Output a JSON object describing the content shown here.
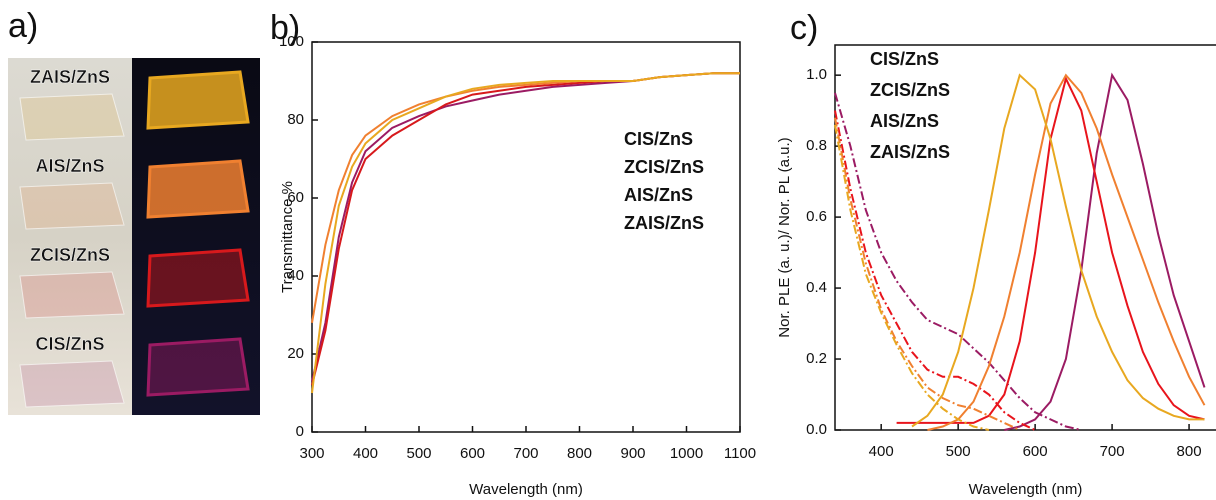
{
  "photo_panel": {
    "panel_label": "a)",
    "samples": [
      {
        "name": "ZAIS/ZnS",
        "color": "#e8a820"
      },
      {
        "name": "AIS/ZnS",
        "color": "#f08030"
      },
      {
        "name": "ZCIS/ZnS",
        "color": "#d7191c"
      },
      {
        "name": "CIS/ZnS",
        "color": "#9b1b63"
      }
    ]
  },
  "chart_data": [
    {
      "type": "line",
      "panel_label": "b)",
      "x_label": "Wavelength (nm)",
      "y_label": "Transmittance %",
      "xlim": [
        300,
        1100
      ],
      "xticks": [
        300,
        400,
        500,
        600,
        700,
        800,
        900,
        1000,
        1100
      ],
      "ylim": [
        0,
        100
      ],
      "yticks": [
        0,
        20,
        40,
        60,
        80,
        100
      ],
      "grid": false,
      "legend": "center right",
      "x": [
        300,
        325,
        350,
        375,
        400,
        450,
        500,
        550,
        600,
        650,
        700,
        750,
        800,
        850,
        900,
        950,
        1000,
        1050,
        1100
      ],
      "series": [
        {
          "name": "CIS/ZnS",
          "color": "#9b1b63",
          "values": [
            13,
            28,
            50,
            64,
            72,
            78,
            81,
            83.5,
            85,
            86.5,
            87.5,
            88.5,
            89,
            89.5,
            90,
            91,
            91.5,
            92,
            92
          ]
        },
        {
          "name": "ZCIS/ZnS",
          "color": "#d7191c",
          "values": [
            12,
            26,
            47,
            62,
            70,
            76,
            80,
            84,
            86.5,
            87.5,
            88.5,
            89,
            89.5,
            90,
            90,
            91,
            91.5,
            92,
            92
          ]
        },
        {
          "name": "AIS/ZnS",
          "color": "#f08030",
          "values": [
            28,
            48,
            62,
            71,
            76,
            81,
            84,
            86,
            87.5,
            88.5,
            89,
            89.5,
            90,
            90,
            90,
            91,
            91.5,
            92,
            92
          ]
        },
        {
          "name": "ZAIS/ZnS",
          "color": "#e8a820",
          "values": [
            10,
            38,
            58,
            68,
            74,
            80,
            83,
            86,
            88,
            89,
            89.5,
            90,
            90,
            90,
            90,
            91,
            91.5,
            92,
            92
          ]
        }
      ]
    },
    {
      "type": "line",
      "panel_label": "c)",
      "x_label": "Wavelength (nm)",
      "y_label": "Nor. PLE (a. u.)/ Nor. PL (a.u.)",
      "xlim": [
        340,
        835
      ],
      "xticks": [
        400,
        500,
        600,
        700,
        800
      ],
      "ylim": [
        0,
        1.085
      ],
      "yticks": [
        {
          "value": 0,
          "label": "0.0"
        },
        0.2,
        0.4,
        0.6,
        0.8,
        {
          "value": 1,
          "label": "1.0"
        }
      ],
      "grid": false,
      "legend": "upper left",
      "x": [
        340,
        360,
        380,
        400,
        420,
        440,
        460,
        480,
        500,
        520,
        540,
        560,
        580,
        600,
        620,
        640,
        660,
        680,
        700,
        720,
        740,
        760,
        780,
        800,
        820
      ],
      "series": [
        {
          "name": "CIS/ZnS",
          "color": "#9b1b63",
          "ple": [
            0.95,
            0.8,
            0.62,
            0.5,
            0.42,
            0.36,
            0.31,
            0.29,
            0.27,
            0.23,
            0.19,
            0.14,
            0.09,
            0.05,
            0.03,
            0.01,
            0,
            null,
            null,
            null,
            null,
            null,
            null,
            null,
            null
          ],
          "values": [
            null,
            null,
            null,
            null,
            null,
            null,
            null,
            null,
            null,
            null,
            null,
            0,
            0.01,
            0.03,
            0.08,
            0.2,
            0.45,
            0.78,
            1.0,
            0.93,
            0.75,
            0.55,
            0.38,
            0.25,
            0.12
          ]
        },
        {
          "name": "ZCIS/ZnS",
          "color": "#e8141c",
          "ple": [
            0.9,
            0.68,
            0.5,
            0.38,
            0.3,
            0.22,
            0.17,
            0.15,
            0.15,
            0.13,
            0.1,
            0.05,
            0.02,
            0,
            null,
            null,
            null,
            null,
            null,
            null,
            null,
            null,
            null,
            null,
            null
          ],
          "values": [
            null,
            null,
            null,
            null,
            0.02,
            0.02,
            0.02,
            0.02,
            0.02,
            0.02,
            0.04,
            0.1,
            0.25,
            0.5,
            0.82,
            0.99,
            0.9,
            0.7,
            0.5,
            0.35,
            0.22,
            0.13,
            0.07,
            0.04,
            0.03
          ]
        },
        {
          "name": "AIS/ZnS",
          "color": "#f08030",
          "ple": [
            0.88,
            0.65,
            0.47,
            0.34,
            0.25,
            0.18,
            0.12,
            0.09,
            0.07,
            0.06,
            0.04,
            0.02,
            0,
            null,
            null,
            null,
            null,
            null,
            null,
            null,
            null,
            null,
            null,
            null,
            null
          ],
          "values": [
            null,
            null,
            null,
            null,
            null,
            null,
            0,
            0.01,
            0.03,
            0.08,
            0.18,
            0.32,
            0.5,
            0.72,
            0.92,
            1.0,
            0.95,
            0.85,
            0.72,
            0.6,
            0.48,
            0.36,
            0.25,
            0.15,
            0.07
          ]
        },
        {
          "name": "ZAIS/ZnS",
          "color": "#e8a820",
          "ple": [
            0.86,
            0.62,
            0.44,
            0.33,
            0.24,
            0.16,
            0.1,
            0.06,
            0.03,
            0.01,
            0,
            null,
            null,
            null,
            null,
            null,
            null,
            null,
            null,
            null,
            null,
            null,
            null,
            null,
            null
          ],
          "values": [
            null,
            null,
            null,
            null,
            null,
            0.01,
            0.04,
            0.1,
            0.22,
            0.4,
            0.62,
            0.85,
            1.0,
            0.96,
            0.82,
            0.63,
            0.45,
            0.32,
            0.22,
            0.14,
            0.09,
            0.06,
            0.04,
            0.03,
            0.03
          ]
        }
      ]
    }
  ]
}
